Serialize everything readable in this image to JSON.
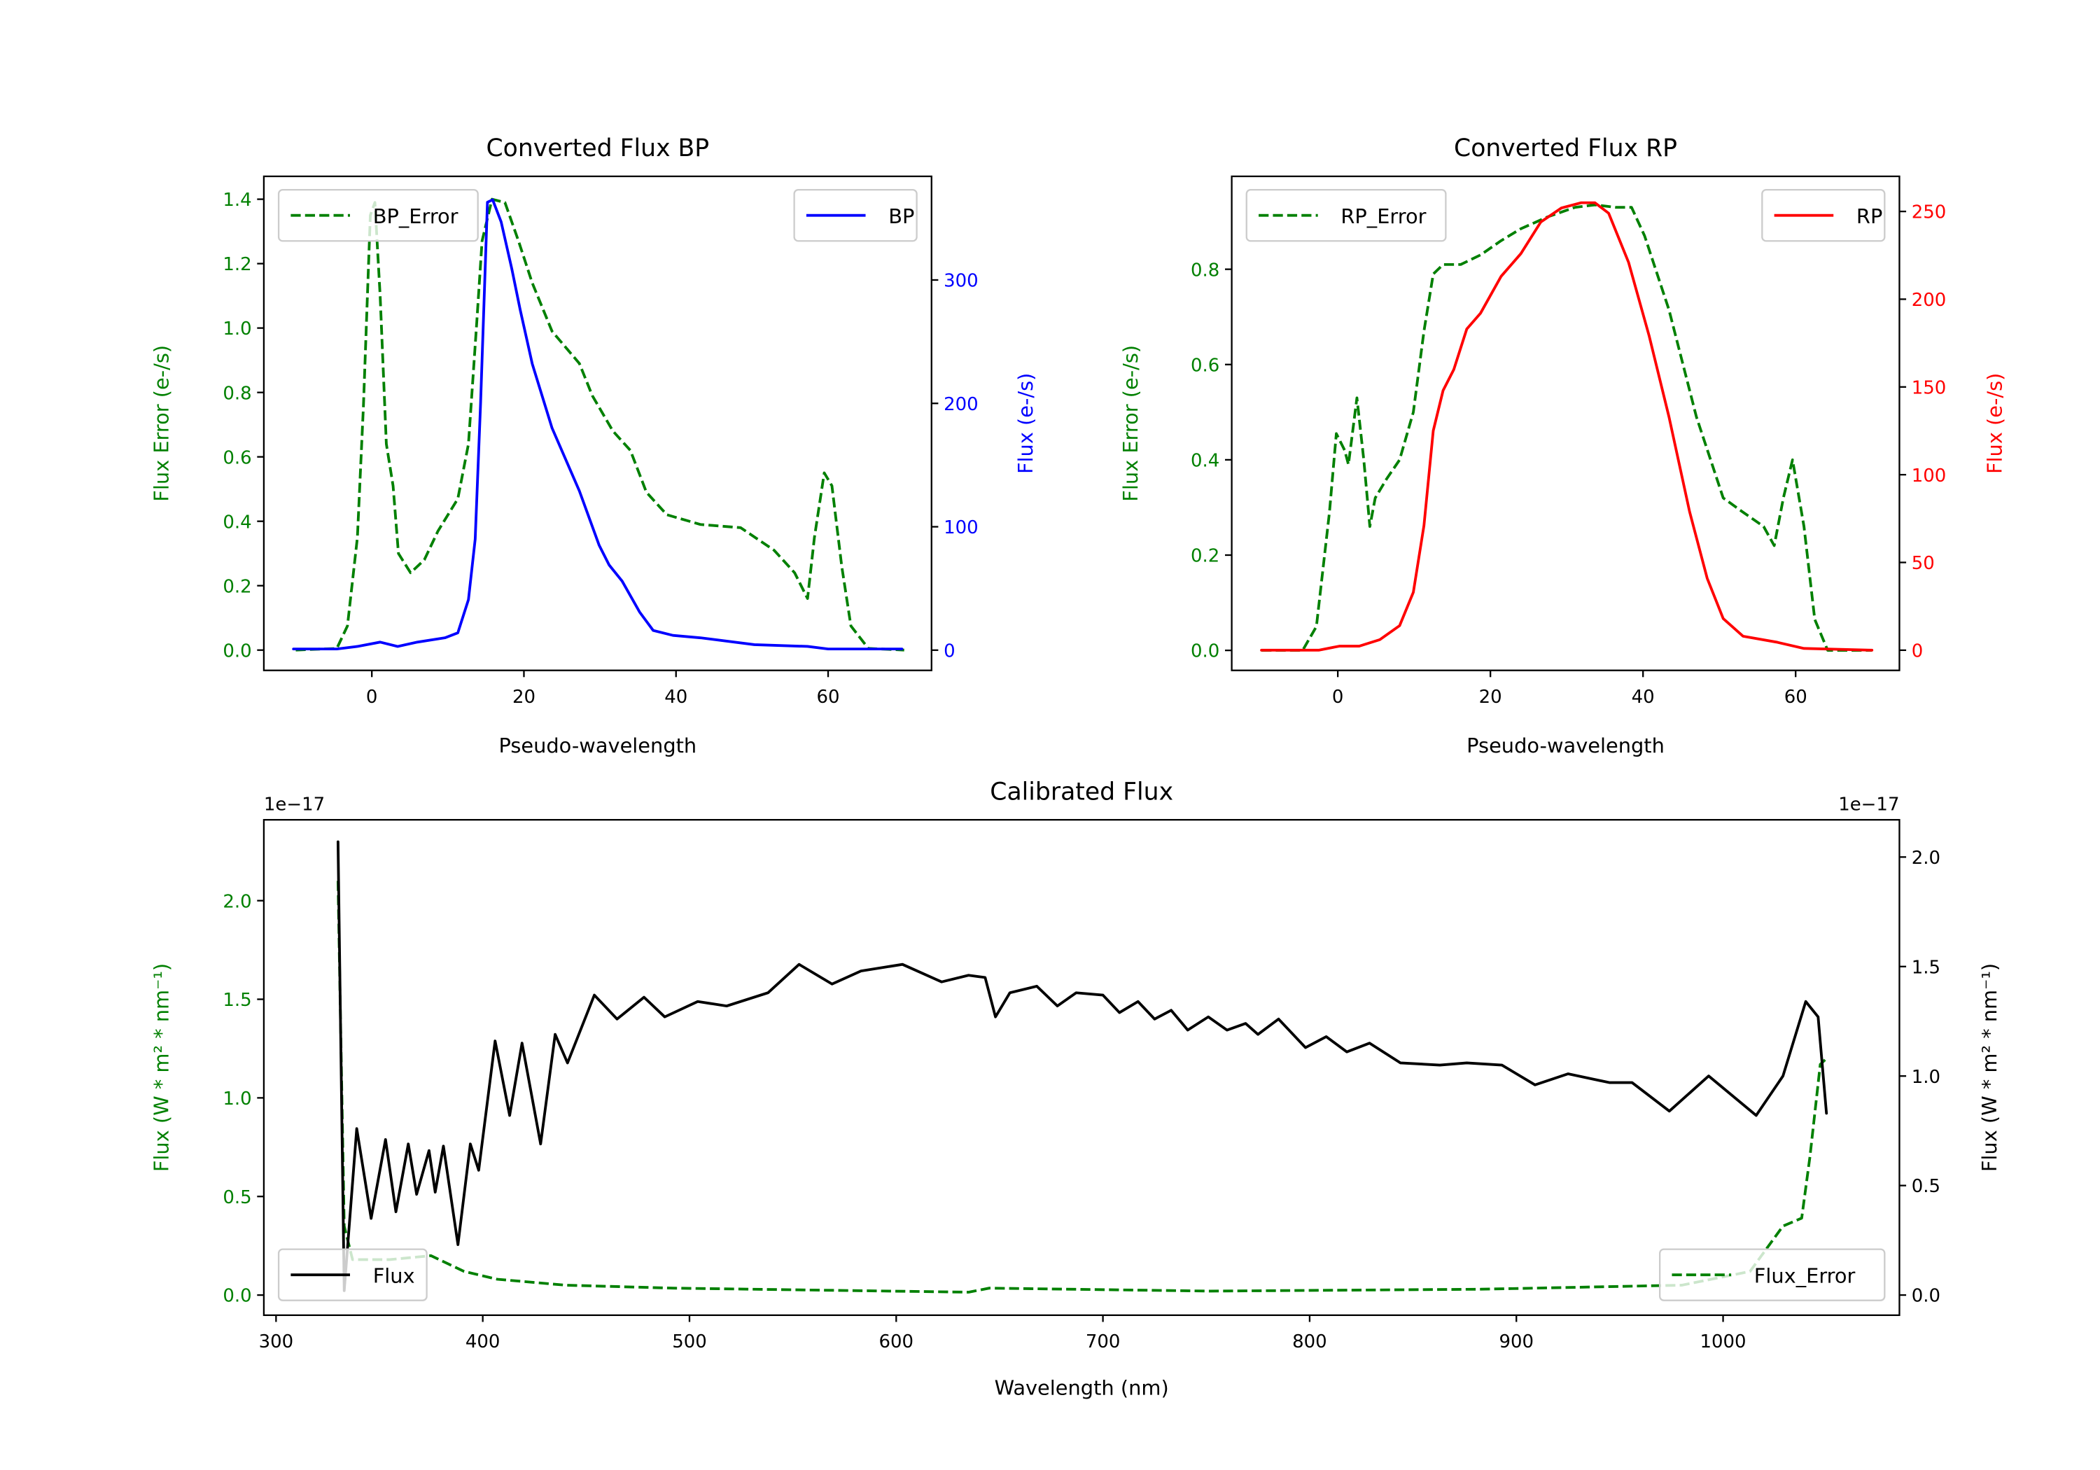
{
  "chart_data": [
    {
      "type": "line",
      "title": "Converted Flux BP",
      "xlabel": "Pseudo-wavelength",
      "xlim": [
        -14.2,
        73.6
      ],
      "xticks": [
        0,
        20,
        40,
        60
      ],
      "xtick_labels": [
        "0",
        "20",
        "40",
        "60"
      ],
      "left_axis": {
        "label": "Flux Error (e-/s)",
        "color": "#008000",
        "ylim": [
          -0.063,
          1.471
        ],
        "ticks": [
          0,
          0.2,
          0.4,
          0.6,
          0.8,
          1.0,
          1.2,
          1.4
        ],
        "tick_labels": [
          "0.0",
          "0.2",
          "0.4",
          "0.6",
          "0.8",
          "1.0",
          "1.2",
          "1.4"
        ]
      },
      "right_axis": {
        "label": "Flux (e-/s)",
        "color": "#0000ff",
        "ylim": [
          -16.4,
          384
        ],
        "ticks": [
          0,
          100,
          200,
          300
        ],
        "tick_labels": [
          "0",
          "100",
          "200",
          "300"
        ]
      },
      "series": [
        {
          "name": "BP_Error",
          "color": "#008000",
          "style": "dashed",
          "axis": "left",
          "x": [
            -10,
            -4.6,
            -3.2,
            -1.9,
            -1.1,
            -0.2,
            0.4,
            1.1,
            1.9,
            2.8,
            3.5,
            5.1,
            6.9,
            8.7,
            11.3,
            12.7,
            13.8,
            14.5,
            15.8,
            17.5,
            19.3,
            21.1,
            23.7,
            27.3,
            29,
            31.7,
            34,
            36.1,
            38.8,
            43.2,
            48.5,
            52.9,
            55.6,
            57.3,
            58.2,
            59.5,
            60.5,
            61.8,
            63,
            65.3,
            70
          ],
          "y": [
            0,
            0.005,
            0.075,
            0.35,
            0.76,
            1.35,
            1.39,
            1.1,
            0.64,
            0.51,
            0.3,
            0.24,
            0.28,
            0.37,
            0.47,
            0.64,
            1.02,
            1.27,
            1.4,
            1.39,
            1.27,
            1.14,
            0.99,
            0.89,
            0.79,
            0.68,
            0.62,
            0.49,
            0.42,
            0.39,
            0.38,
            0.31,
            0.24,
            0.16,
            0.35,
            0.55,
            0.51,
            0.26,
            0.075,
            0.005,
            0
          ]
        },
        {
          "name": "BP",
          "color": "#0000ff",
          "style": "solid",
          "axis": "right",
          "x": [
            -10.3,
            -4.6,
            -1.9,
            1.1,
            3.4,
            6,
            9.6,
            11.3,
            12.7,
            13.6,
            14.3,
            15.2,
            15.9,
            17,
            18.4,
            19.5,
            21.1,
            23.7,
            27.3,
            29.9,
            31.2,
            32.9,
            35.2,
            37,
            39.6,
            43.2,
            50.3,
            57.3,
            60,
            69.7
          ],
          "y": [
            1,
            1,
            3,
            6.5,
            3,
            6.5,
            10,
            14,
            41,
            90,
            200,
            363,
            365,
            347,
            309,
            276,
            232,
            180,
            129,
            85,
            69,
            56,
            31,
            16,
            12,
            10,
            4.4,
            3,
            1,
            1
          ]
        }
      ],
      "legends": [
        {
          "axis": "left",
          "placement": "upper-left",
          "entries": [
            "BP_Error"
          ]
        },
        {
          "axis": "right",
          "placement": "upper-right",
          "entries": [
            "BP"
          ]
        }
      ]
    },
    {
      "type": "line",
      "title": "Converted Flux RP",
      "xlabel": "Pseudo-wavelength",
      "xlim": [
        -13.9,
        73.6
      ],
      "xticks": [
        0,
        20,
        40,
        60
      ],
      "xtick_labels": [
        "0",
        "20",
        "40",
        "60"
      ],
      "left_axis": {
        "label": "Flux Error (e-/s)",
        "color": "#008000",
        "ylim": [
          -0.042,
          0.995
        ],
        "ticks": [
          0,
          0.2,
          0.4,
          0.6,
          0.8
        ],
        "tick_labels": [
          "0.0",
          "0.2",
          "0.4",
          "0.6",
          "0.8"
        ]
      },
      "right_axis": {
        "label": "Flux (e-/s)",
        "color": "#ff0000",
        "ylim": [
          -11.5,
          270
        ],
        "ticks": [
          0,
          50,
          100,
          150,
          200,
          250
        ],
        "tick_labels": [
          "0",
          "50",
          "100",
          "150",
          "200",
          "250"
        ]
      },
      "series": [
        {
          "name": "RP_Error",
          "color": "#008000",
          "style": "dashed",
          "axis": "left",
          "x": [
            -10,
            -4.6,
            -2.8,
            -1.1,
            -0.2,
            0.9,
            1.4,
            2.5,
            3.4,
            4.2,
            4.9,
            6.4,
            8.1,
            9.9,
            11.3,
            12.5,
            13.8,
            16.1,
            18.7,
            21.4,
            24,
            27.5,
            31.1,
            33.7,
            36.4,
            38.5,
            40.2,
            43.4,
            47,
            50.5,
            53.1,
            55.8,
            57.2,
            58.4,
            59.6,
            61.1,
            62.5,
            64.2,
            70
          ],
          "y": [
            0,
            0,
            0.05,
            0.29,
            0.455,
            0.42,
            0.39,
            0.53,
            0.4,
            0.26,
            0.32,
            0.36,
            0.4,
            0.5,
            0.67,
            0.79,
            0.81,
            0.81,
            0.83,
            0.86,
            0.885,
            0.91,
            0.93,
            0.935,
            0.93,
            0.93,
            0.87,
            0.715,
            0.49,
            0.32,
            0.29,
            0.26,
            0.22,
            0.32,
            0.4,
            0.26,
            0.065,
            0,
            0
          ]
        },
        {
          "name": "RP",
          "color": "#ff0000",
          "style": "solid",
          "axis": "right",
          "x": [
            -10,
            -2.5,
            0.2,
            2.8,
            5.5,
            8.1,
            9.9,
            11.3,
            12.5,
            13.8,
            15.2,
            16.9,
            18.7,
            21.4,
            24,
            26.6,
            29.3,
            31.9,
            33.7,
            35.5,
            38.1,
            40.8,
            43.4,
            46.1,
            48.4,
            50.5,
            53.1,
            57.5,
            61.1,
            70
          ],
          "y": [
            0,
            0,
            2.3,
            2.3,
            6,
            14,
            33,
            71,
            125,
            148,
            160,
            183,
            192,
            213,
            226,
            244,
            252,
            255,
            255,
            249,
            221,
            179,
            133,
            79,
            41,
            18,
            8,
            4.6,
            1,
            0
          ]
        }
      ],
      "legends": [
        {
          "axis": "left",
          "placement": "upper-left",
          "entries": [
            "RP_Error"
          ]
        },
        {
          "axis": "right",
          "placement": "upper-right",
          "entries": [
            "RP"
          ]
        }
      ]
    },
    {
      "type": "line",
      "title": "Calibrated Flux",
      "xlabel": "Wavelength (nm)",
      "xlim": [
        294.1,
        1085.3
      ],
      "xticks": [
        300,
        400,
        500,
        600,
        700,
        800,
        900,
        1000
      ],
      "xtick_labels": [
        "300",
        "400",
        "500",
        "600",
        "700",
        "800",
        "900",
        "1000"
      ],
      "left_axis": {
        "label": "Flux (W * m² * nm⁻¹)",
        "color": "#008000",
        "ylim": [
          -0.102,
          2.41
        ],
        "offset_text": "1e−17",
        "ticks": [
          0,
          0.5,
          1.0,
          1.5,
          2.0
        ],
        "tick_labels": [
          "0.0",
          "0.5",
          "1.0",
          "1.5",
          "2.0"
        ]
      },
      "right_axis": {
        "label": "Flux (W * m² * nm⁻¹)",
        "color": "#000000",
        "ylim": [
          -0.092,
          2.17
        ],
        "offset_text": "1e−17",
        "ticks": [
          0,
          0.5,
          1.0,
          1.5,
          2.0
        ],
        "tick_labels": [
          "0.0",
          "0.5",
          "1.0",
          "1.5",
          "2.0"
        ]
      },
      "series": [
        {
          "name": "Flux_Error",
          "color": "#008000",
          "style": "dashed",
          "axis": "left",
          "x": [
            330,
            333,
            337,
            355,
            375,
            391,
            407,
            440,
            492,
            635,
            645,
            752,
            883,
            980,
            1013,
            1029,
            1038,
            1042,
            1047,
            1050
          ],
          "y": [
            2.1,
            0.35,
            0.18,
            0.18,
            0.2,
            0.12,
            0.08,
            0.05,
            0.035,
            0.015,
            0.035,
            0.02,
            0.03,
            0.05,
            0.12,
            0.35,
            0.39,
            0.7,
            1.17,
            1.2
          ]
        },
        {
          "name": "Flux",
          "color": "#000000",
          "style": "solid",
          "axis": "right",
          "x": [
            330,
            333,
            339,
            346,
            353,
            358,
            364,
            368,
            374,
            377,
            381,
            388,
            394,
            398,
            406,
            413,
            419,
            428,
            435,
            441,
            454,
            465,
            478,
            488,
            504,
            518,
            538,
            553,
            569,
            583,
            603,
            622,
            635,
            643,
            648,
            655,
            668,
            678,
            687,
            700,
            708,
            717,
            725,
            733,
            741,
            751,
            760,
            769,
            775,
            785,
            798,
            808,
            818,
            829,
            844,
            863,
            876,
            893,
            909,
            925,
            945,
            956,
            974,
            993,
            1016,
            1029,
            1040,
            1046,
            1050
          ],
          "y": [
            2.07,
            0.02,
            0.76,
            0.35,
            0.71,
            0.38,
            0.69,
            0.46,
            0.66,
            0.47,
            0.68,
            0.23,
            0.69,
            0.57,
            1.16,
            0.82,
            1.15,
            0.69,
            1.19,
            1.06,
            1.37,
            1.26,
            1.36,
            1.27,
            1.34,
            1.32,
            1.38,
            1.51,
            1.42,
            1.48,
            1.51,
            1.43,
            1.46,
            1.45,
            1.27,
            1.38,
            1.41,
            1.32,
            1.38,
            1.37,
            1.29,
            1.34,
            1.26,
            1.3,
            1.21,
            1.27,
            1.21,
            1.24,
            1.19,
            1.26,
            1.13,
            1.18,
            1.11,
            1.15,
            1.06,
            1.05,
            1.06,
            1.05,
            0.96,
            1.01,
            0.97,
            0.97,
            0.84,
            1.0,
            0.82,
            1.0,
            1.34,
            1.27,
            0.83
          ]
        }
      ],
      "legends": [
        {
          "axis": "left",
          "placement": "lower-right",
          "entries": [
            "Flux_Error"
          ]
        },
        {
          "axis": "right",
          "placement": "lower-left",
          "entries": [
            "Flux"
          ]
        }
      ]
    }
  ]
}
